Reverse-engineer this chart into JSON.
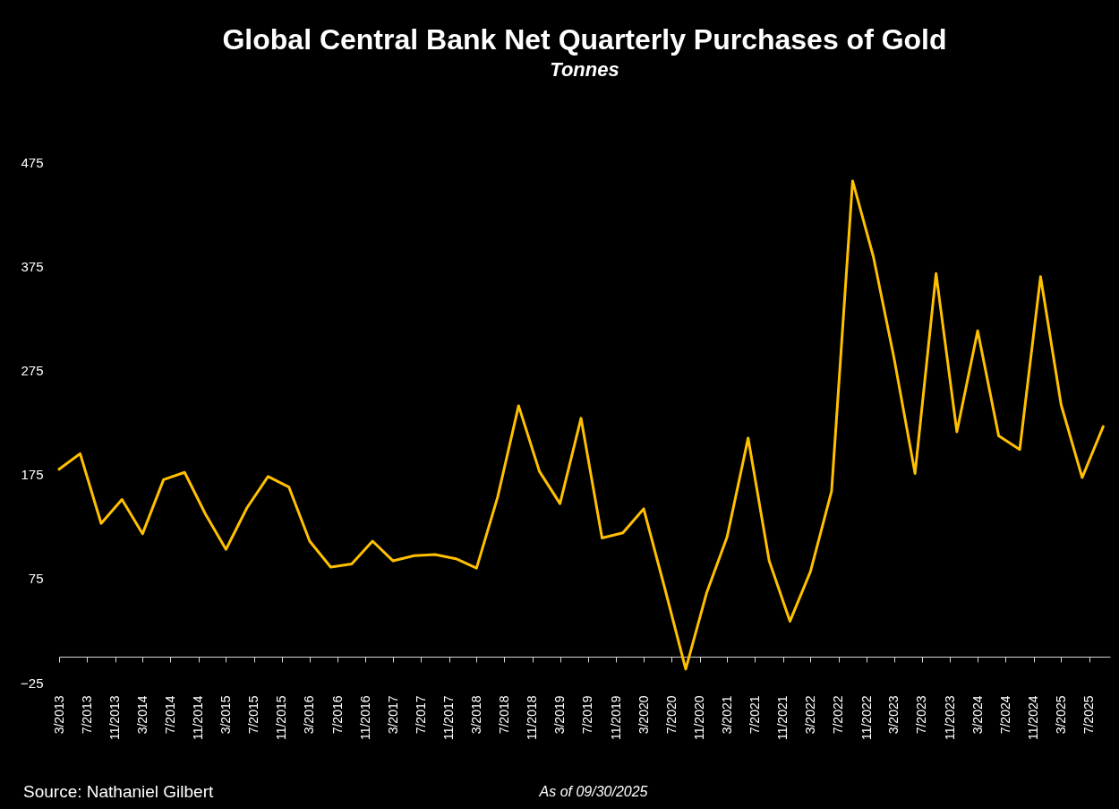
{
  "chart_data": {
    "type": "line",
    "title": "Global Central Bank Net Quarterly Purchases of Gold",
    "subtitle": "Tonnes",
    "annotations": [
      "Source: Nathaniel Gilbert",
      "As of 09/30/2025"
    ],
    "x": [
      "2013-03",
      "2013-06",
      "2013-09",
      "2013-12",
      "2014-03",
      "2014-06",
      "2014-09",
      "2014-12",
      "2015-03",
      "2015-06",
      "2015-09",
      "2015-12",
      "2016-03",
      "2016-06",
      "2016-09",
      "2016-12",
      "2017-03",
      "2017-06",
      "2017-09",
      "2017-12",
      "2018-03",
      "2018-06",
      "2018-09",
      "2018-12",
      "2019-03",
      "2019-06",
      "2019-09",
      "2019-12",
      "2020-03",
      "2020-06",
      "2020-09",
      "2020-12",
      "2021-03",
      "2021-06",
      "2021-09",
      "2021-12",
      "2022-03",
      "2022-06",
      "2022-09",
      "2022-12",
      "2023-03",
      "2023-06",
      "2023-09",
      "2023-12",
      "2024-03",
      "2024-06",
      "2024-09",
      "2024-12",
      "2025-03",
      "2025-06",
      "2025-09"
    ],
    "series": [
      {
        "color": "#ffc000",
        "values": [
          180,
          195,
          128,
          151,
          118,
          170,
          177,
          137,
          103,
          143,
          173,
          163,
          111,
          86,
          89,
          111,
          92,
          97,
          98,
          94,
          85,
          153,
          241,
          178,
          147,
          229,
          114,
          119,
          142,
          66,
          -12,
          61,
          115,
          210,
          92,
          34,
          82,
          159,
          457,
          384,
          287,
          176,
          368,
          216,
          313,
          212,
          199,
          365,
          242,
          172,
          221
        ]
      }
    ],
    "xlim": [
      "2013-03",
      "2025-10"
    ],
    "xticks": [
      {
        "value": "2013-03",
        "label": "3/2013"
      },
      {
        "value": "2013-07",
        "label": "7/2013"
      },
      {
        "value": "2013-11",
        "label": "11/2013"
      },
      {
        "value": "2014-03",
        "label": "3/2014"
      },
      {
        "value": "2014-07",
        "label": "7/2014"
      },
      {
        "value": "2014-11",
        "label": "11/2014"
      },
      {
        "value": "2015-03",
        "label": "3/2015"
      },
      {
        "value": "2015-07",
        "label": "7/2015"
      },
      {
        "value": "2015-11",
        "label": "11/2015"
      },
      {
        "value": "2016-03",
        "label": "3/2016"
      },
      {
        "value": "2016-07",
        "label": "7/2016"
      },
      {
        "value": "2016-11",
        "label": "11/2016"
      },
      {
        "value": "2017-03",
        "label": "3/2017"
      },
      {
        "value": "2017-07",
        "label": "7/2017"
      },
      {
        "value": "2017-11",
        "label": "11/2017"
      },
      {
        "value": "2018-03",
        "label": "3/2018"
      },
      {
        "value": "2018-07",
        "label": "7/2018"
      },
      {
        "value": "2018-11",
        "label": "11/2018"
      },
      {
        "value": "2019-03",
        "label": "3/2019"
      },
      {
        "value": "2019-07",
        "label": "7/2019"
      },
      {
        "value": "2019-11",
        "label": "11/2019"
      },
      {
        "value": "2020-03",
        "label": "3/2020"
      },
      {
        "value": "2020-07",
        "label": "7/2020"
      },
      {
        "value": "2020-11",
        "label": "11/2020"
      },
      {
        "value": "2021-03",
        "label": "3/2021"
      },
      {
        "value": "2021-07",
        "label": "7/2021"
      },
      {
        "value": "2021-11",
        "label": "11/2021"
      },
      {
        "value": "2022-03",
        "label": "3/2022"
      },
      {
        "value": "2022-07",
        "label": "7/2022"
      },
      {
        "value": "2022-11",
        "label": "11/2022"
      },
      {
        "value": "2023-03",
        "label": "3/2023"
      },
      {
        "value": "2023-07",
        "label": "7/2023"
      },
      {
        "value": "2023-11",
        "label": "11/2023"
      },
      {
        "value": "2024-03",
        "label": "3/2024"
      },
      {
        "value": "2024-07",
        "label": "7/2024"
      },
      {
        "value": "2024-11",
        "label": "11/2024"
      },
      {
        "value": "2025-03",
        "label": "3/2025"
      },
      {
        "value": "2025-07",
        "label": "7/2025"
      }
    ],
    "ylim": [
      -25,
      475
    ],
    "yticks": [
      -25,
      75,
      175,
      275,
      375,
      475
    ]
  }
}
